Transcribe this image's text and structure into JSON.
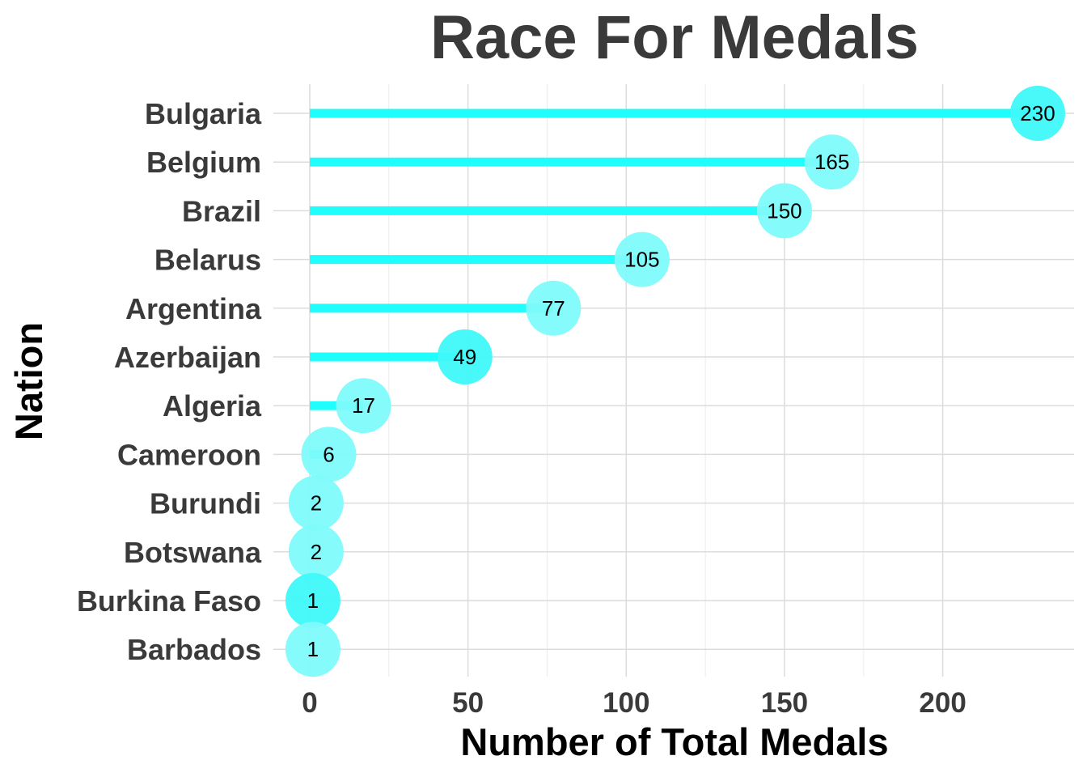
{
  "chart_data": {
    "type": "lollipop",
    "title": "Race For Medals",
    "xlabel": "Number of Total Medals",
    "ylabel": "Nation",
    "xlim": [
      -11.5,
      241.5
    ],
    "x_ticks": [
      0,
      50,
      100,
      150,
      200
    ],
    "x_tick_labels": [
      "0",
      "50",
      "100",
      "150",
      "200"
    ],
    "grid": true,
    "legend": "none",
    "colors": {
      "stem": "#1ffdfd",
      "point_light": "#7efbfb",
      "point_strong": "#3ff9f9",
      "title": "#3a3a3a",
      "tick_text": "#3a3a3a"
    },
    "categories": [
      "Bulgaria",
      "Belgium",
      "Brazil",
      "Belarus",
      "Argentina",
      "Azerbaijan",
      "Algeria",
      "Cameroon",
      "Burundi",
      "Botswana",
      "Burkina Faso",
      "Barbados"
    ],
    "values": [
      230,
      165,
      150,
      105,
      77,
      49,
      17,
      6,
      2,
      2,
      1,
      1
    ],
    "value_labels": [
      "230",
      "165",
      "150",
      "105",
      "77",
      "49",
      "17",
      "6",
      "2",
      "2",
      "1",
      "1"
    ],
    "point_shades": [
      "strong",
      "light",
      "light",
      "light",
      "light",
      "strong",
      "light",
      "light",
      "light",
      "light",
      "strong",
      "light"
    ]
  }
}
